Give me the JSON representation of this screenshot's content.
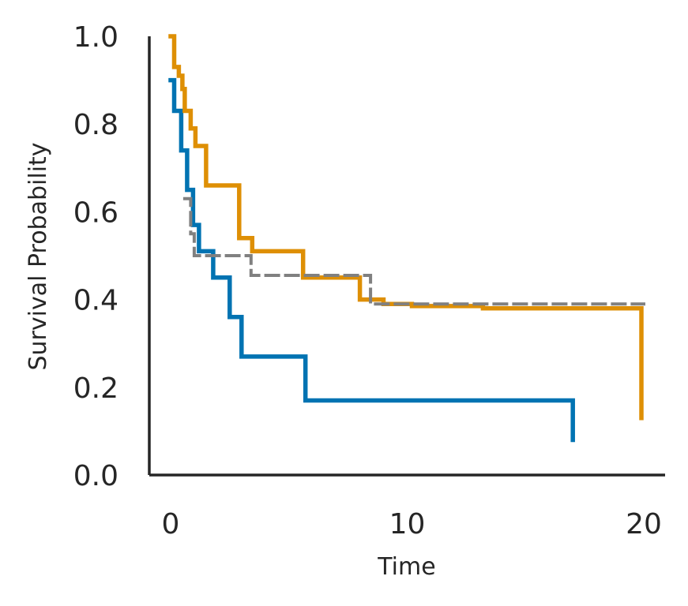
{
  "chart_data": {
    "type": "line",
    "xlabel": "Time",
    "ylabel": "Survival Probability",
    "xlim": [
      -0.9,
      20.9
    ],
    "ylim": [
      0.0,
      1.0
    ],
    "x_ticks": [
      "0",
      "10",
      "20"
    ],
    "y_ticks": [
      "0.0",
      "0.2",
      "0.4",
      "0.6",
      "0.8",
      "1.0"
    ],
    "grid": false,
    "legend": "none",
    "series": [
      {
        "color": "#0173b2",
        "dash": "solid",
        "x": [
          0.0,
          0.15,
          0.45,
          0.7,
          0.95,
          1.2,
          1.8,
          2.5,
          3.0,
          5.7,
          17.0
        ],
        "y": [
          0.9,
          0.83,
          0.74,
          0.65,
          0.57,
          0.51,
          0.45,
          0.36,
          0.27,
          0.17,
          0.08
        ]
      },
      {
        "color": "#de8f05",
        "dash": "solid",
        "x": [
          0.0,
          0.15,
          0.35,
          0.5,
          0.6,
          0.85,
          1.05,
          1.5,
          2.9,
          3.45,
          5.6,
          8.0,
          9.0,
          10.2,
          13.2,
          19.9
        ],
        "y": [
          1.0,
          0.93,
          0.91,
          0.88,
          0.83,
          0.79,
          0.75,
          0.66,
          0.54,
          0.51,
          0.45,
          0.4,
          0.39,
          0.385,
          0.38,
          0.13
        ]
      },
      {
        "color": "#808080",
        "dash": "dashed",
        "x": [
          0.6,
          0.85,
          1.0,
          3.4,
          8.45,
          20.0
        ],
        "y": [
          0.63,
          0.55,
          0.5,
          0.455,
          0.39,
          0.39
        ]
      }
    ]
  }
}
